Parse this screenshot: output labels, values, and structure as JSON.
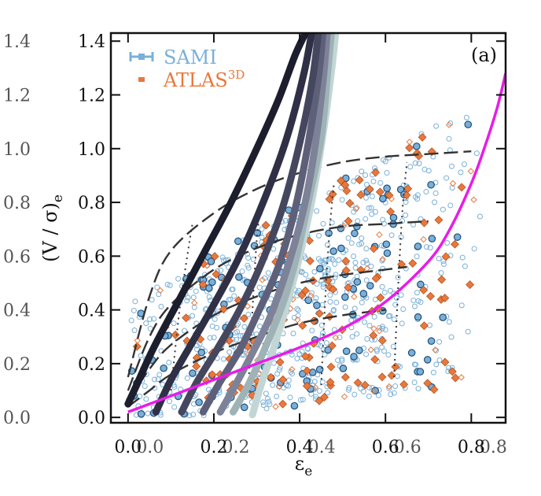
{
  "chart_data": {
    "type": "scatter",
    "title": "",
    "xlabel": "ε",
    "xlabel_sub": "e",
    "ylabel": "(V / σ)",
    "ylabel_sub": "e",
    "xlim": [
      -0.04,
      0.88
    ],
    "ylim": [
      -0.02,
      1.43
    ],
    "x_ticks": [
      "0.0",
      "0.2",
      "0.4",
      "0.6",
      "0.8"
    ],
    "x_tick_values": [
      0.0,
      0.2,
      0.4,
      0.6,
      0.8
    ],
    "x_ticks_offset": [
      "0.0",
      "0.2",
      "0.4",
      "0.6",
      "0.8"
    ],
    "y_ticks": [
      "0.0",
      "0.2",
      "0.4",
      "0.6",
      "0.8",
      "1.0",
      "1.2",
      "1.4"
    ],
    "y_tick_values": [
      0.0,
      0.2,
      0.4,
      0.6,
      0.8,
      1.0,
      1.2,
      1.4
    ],
    "y_ticks_offset": [
      "0.0",
      "0.2",
      "0.4",
      "0.6",
      "0.8",
      "1.0",
      "1.2",
      "1.4"
    ],
    "panel_label": "(a)",
    "legend": {
      "placement": "top-left",
      "entries": [
        {
          "label": "SAMI",
          "color": "#7ab0d8"
        },
        {
          "label": "ATLAS",
          "superscript": "3D",
          "color": "#e8783c"
        }
      ]
    },
    "colors": {
      "sami": "#7ab0d8",
      "sami_edge": "#1f4e79",
      "atlas": "#e8783c",
      "magenta": "#e81ce8",
      "dashed": "#333333"
    },
    "magenta_curve": {
      "x": [
        0.0,
        0.1,
        0.2,
        0.3,
        0.4,
        0.5,
        0.6,
        0.7,
        0.75,
        0.8,
        0.83,
        0.86,
        0.88
      ],
      "y": [
        0.02,
        0.08,
        0.14,
        0.2,
        0.26,
        0.33,
        0.43,
        0.58,
        0.7,
        0.87,
        1.0,
        1.15,
        1.28
      ]
    },
    "thick_curves": [
      {
        "color": "#1c1e2e",
        "x": [
          0.0,
          0.02,
          0.06,
          0.12,
          0.18,
          0.24,
          0.3,
          0.35,
          0.39,
          0.42
        ],
        "y": [
          0.05,
          0.12,
          0.26,
          0.44,
          0.62,
          0.8,
          1.0,
          1.18,
          1.35,
          1.45
        ]
      },
      {
        "color": "#2f3046",
        "x": [
          0.065,
          0.1,
          0.15,
          0.2,
          0.26,
          0.32,
          0.37,
          0.41,
          0.43
        ],
        "y": [
          0.02,
          0.14,
          0.28,
          0.42,
          0.6,
          0.82,
          1.04,
          1.28,
          1.45
        ]
      },
      {
        "color": "#45475f",
        "x": [
          0.125,
          0.16,
          0.21,
          0.26,
          0.31,
          0.36,
          0.4,
          0.43,
          0.445
        ],
        "y": [
          0.02,
          0.13,
          0.26,
          0.4,
          0.57,
          0.78,
          1.02,
          1.26,
          1.45
        ]
      },
      {
        "color": "#5e6079",
        "x": [
          0.175,
          0.21,
          0.26,
          0.3,
          0.35,
          0.39,
          0.42,
          0.445,
          0.455
        ],
        "y": [
          0.02,
          0.12,
          0.25,
          0.38,
          0.56,
          0.78,
          1.02,
          1.28,
          1.45
        ]
      },
      {
        "color": "#7d8299",
        "x": [
          0.215,
          0.25,
          0.29,
          0.33,
          0.37,
          0.41,
          0.435,
          0.455,
          0.465
        ],
        "y": [
          0.02,
          0.12,
          0.24,
          0.37,
          0.55,
          0.78,
          1.0,
          1.26,
          1.45
        ]
      },
      {
        "color": "#9fb3b6",
        "x": [
          0.245,
          0.28,
          0.32,
          0.36,
          0.39,
          0.42,
          0.45,
          0.465,
          0.475
        ],
        "y": [
          0.02,
          0.12,
          0.26,
          0.42,
          0.58,
          0.8,
          1.04,
          1.28,
          1.45
        ]
      },
      {
        "color": "#c2d6d5",
        "x": [
          0.29,
          0.31,
          0.34,
          0.37,
          0.4,
          0.43,
          0.455,
          0.475,
          0.485
        ],
        "y": [
          0.01,
          0.12,
          0.26,
          0.42,
          0.6,
          0.82,
          1.06,
          1.3,
          1.45
        ]
      }
    ],
    "dashed_curves": [
      {
        "x": [
          0.0,
          0.05,
          0.1,
          0.2,
          0.3,
          0.4,
          0.5,
          0.6,
          0.7,
          0.8
        ],
        "y": [
          0.15,
          0.45,
          0.62,
          0.76,
          0.85,
          0.91,
          0.95,
          0.97,
          0.98,
          0.99
        ]
      },
      {
        "x": [
          0.0,
          0.05,
          0.1,
          0.2,
          0.3,
          0.4,
          0.5,
          0.6,
          0.7
        ],
        "y": [
          0.1,
          0.3,
          0.42,
          0.55,
          0.63,
          0.68,
          0.71,
          0.72,
          0.73
        ]
      },
      {
        "x": [
          0.0,
          0.05,
          0.1,
          0.2,
          0.3,
          0.4,
          0.5,
          0.6,
          0.65
        ],
        "y": [
          0.06,
          0.18,
          0.27,
          0.38,
          0.45,
          0.5,
          0.53,
          0.55,
          0.56
        ]
      },
      {
        "x": [
          0.0,
          0.05,
          0.1,
          0.2,
          0.3,
          0.4,
          0.5,
          0.6
        ],
        "y": [
          0.04,
          0.1,
          0.16,
          0.24,
          0.3,
          0.35,
          0.38,
          0.4
        ]
      }
    ],
    "dotted_curves": [
      {
        "x": [
          0.1,
          0.12,
          0.14,
          0.15
        ],
        "y": [
          0.1,
          0.4,
          0.62,
          0.72
        ]
      },
      {
        "x": [
          0.28,
          0.29,
          0.3,
          0.31
        ],
        "y": [
          0.1,
          0.4,
          0.66,
          0.8
        ]
      },
      {
        "x": [
          0.45,
          0.46,
          0.47,
          0.48
        ],
        "y": [
          0.12,
          0.45,
          0.7,
          0.87
        ]
      },
      {
        "x": [
          0.62,
          0.63,
          0.64,
          0.65
        ],
        "y": [
          0.15,
          0.5,
          0.78,
          0.95
        ]
      }
    ],
    "scatter_series": [
      {
        "name": "SAMI",
        "marker": "open-circle",
        "count": 620
      },
      {
        "name": "SAMI",
        "marker": "filled-circle",
        "count": 115
      },
      {
        "name": "ATLAS",
        "marker": "filled-diamond",
        "count": 140
      },
      {
        "name": "ATLAS",
        "marker": "open-diamond",
        "count": 45
      }
    ]
  }
}
